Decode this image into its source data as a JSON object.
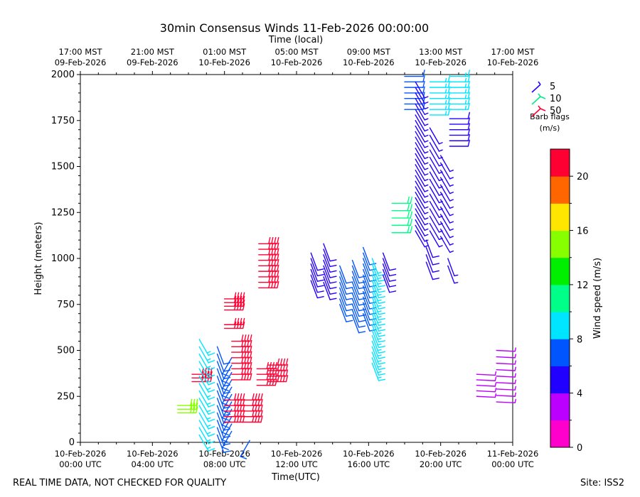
{
  "chart_data": {
    "type": "wind-barb-time-height",
    "title": "30min Consensus Winds 11-Feb-2026 00:00:00",
    "top_axis_label": "Time (local)",
    "xlabel": "Time(UTC)",
    "ylabel": "Height (meters)",
    "x_range_hours": [
      0,
      24
    ],
    "ylim": [
      0,
      2000
    ],
    "y_ticks": [
      0,
      250,
      500,
      750,
      1000,
      1250,
      1500,
      1750,
      2000
    ],
    "x_ticks": [
      {
        "h": 0,
        "l1": "10-Feb-2026",
        "l2": "00:00 UTC"
      },
      {
        "h": 4,
        "l1": "10-Feb-2026",
        "l2": "04:00 UTC"
      },
      {
        "h": 8,
        "l1": "10-Feb-2026",
        "l2": "08:00 UTC"
      },
      {
        "h": 12,
        "l1": "10-Feb-2026",
        "l2": "12:00 UTC"
      },
      {
        "h": 16,
        "l1": "10-Feb-2026",
        "l2": "16:00 UTC"
      },
      {
        "h": 20,
        "l1": "10-Feb-2026",
        "l2": "20:00 UTC"
      },
      {
        "h": 24,
        "l1": "11-Feb-2026",
        "l2": "00:00 UTC"
      }
    ],
    "top_ticks": [
      {
        "h": 0,
        "l1": "17:00 MST",
        "l2": "09-Feb-2026"
      },
      {
        "h": 4,
        "l1": "21:00 MST",
        "l2": "09-Feb-2026"
      },
      {
        "h": 8,
        "l1": "01:00 MST",
        "l2": "10-Feb-2026"
      },
      {
        "h": 12,
        "l1": "05:00 MST",
        "l2": "10-Feb-2026"
      },
      {
        "h": 16,
        "l1": "09:00 MST",
        "l2": "10-Feb-2026"
      },
      {
        "h": 20,
        "l1": "13:00 MST",
        "l2": "10-Feb-2026"
      },
      {
        "h": 24,
        "l1": "17:00 MST",
        "l2": "10-Feb-2026"
      }
    ],
    "colorbar": {
      "label": "Wind speed (m/s)",
      "min": 0,
      "max": 22,
      "ticks": [
        0,
        4,
        8,
        12,
        16,
        20
      ],
      "colors": [
        "#ff00cc",
        "#bb00ff",
        "#2200ff",
        "#0055ff",
        "#00e5ff",
        "#00ff88",
        "#00ee00",
        "#88ff00",
        "#ffe600",
        "#ff6600",
        "#ff0033"
      ]
    },
    "legend": {
      "title": "Barb flags",
      "units": "(m/s)",
      "entries": [
        {
          "label": "5",
          "color": "#2200ff"
        },
        {
          "label": "10",
          "color": "#00ee88"
        },
        {
          "label": "50",
          "color": "#ff0033"
        }
      ]
    },
    "barb_columns": [
      {
        "t": 6.2,
        "h0": 370,
        "h1": 330,
        "dh": 20,
        "s": 20,
        "dir": "E"
      },
      {
        "t": 5.4,
        "h0": 200,
        "h1": 160,
        "dh": 20,
        "s": 15,
        "dir": "E"
      },
      {
        "t": 6.6,
        "h0": 560,
        "h1": 20,
        "dh": 40,
        "s": 8,
        "dir": "NE"
      },
      {
        "t": 7.6,
        "h0": 520,
        "h1": 40,
        "dh": 40,
        "s": 7,
        "dir": "N"
      },
      {
        "t": 8.4,
        "h0": 460,
        "h1": 60,
        "dh": 40,
        "s": 6,
        "dir": "NW"
      },
      {
        "t": 9.4,
        "h0": 10,
        "h1": 10,
        "dh": 20,
        "s": 6,
        "dir": "NW"
      },
      {
        "t": 8.0,
        "h0": 780,
        "h1": 720,
        "dh": 20,
        "s": 20,
        "dir": "E"
      },
      {
        "t": 8.0,
        "h0": 640,
        "h1": 620,
        "dh": 20,
        "s": 20,
        "dir": "E"
      },
      {
        "t": 8.4,
        "h0": 550,
        "h1": 330,
        "dh": 30,
        "s": 20,
        "dir": "E"
      },
      {
        "t": 8.0,
        "h0": 230,
        "h1": 110,
        "dh": 30,
        "s": 20,
        "dir": "E"
      },
      {
        "t": 9.0,
        "h0": 230,
        "h1": 100,
        "dh": 30,
        "s": 20,
        "dir": "E"
      },
      {
        "t": 9.9,
        "h0": 1080,
        "h1": 840,
        "dh": 30,
        "s": 21,
        "dir": "E"
      },
      {
        "t": 9.8,
        "h0": 400,
        "h1": 300,
        "dh": 30,
        "s": 21,
        "dir": "E"
      },
      {
        "t": 10.4,
        "h0": 420,
        "h1": 310,
        "dh": 30,
        "s": 21,
        "dir": "E"
      },
      {
        "t": 12.8,
        "h0": 1030,
        "h1": 870,
        "dh": 30,
        "s": 5,
        "dir": "N"
      },
      {
        "t": 13.5,
        "h0": 1080,
        "h1": 860,
        "dh": 30,
        "s": 5,
        "dir": "N"
      },
      {
        "t": 14.4,
        "h0": 960,
        "h1": 730,
        "dh": 30,
        "s": 6,
        "dir": "N"
      },
      {
        "t": 15.1,
        "h0": 990,
        "h1": 690,
        "dh": 30,
        "s": 7,
        "dir": "N"
      },
      {
        "t": 15.7,
        "h0": 1060,
        "h1": 690,
        "dh": 30,
        "s": 7,
        "dir": "N"
      },
      {
        "t": 16.2,
        "h0": 1000,
        "h1": 430,
        "dh": 30,
        "s": 8,
        "dir": "N"
      },
      {
        "t": 16.8,
        "h0": 1030,
        "h1": 900,
        "dh": 30,
        "s": 5,
        "dir": "N"
      },
      {
        "t": 17.3,
        "h0": 1300,
        "h1": 1130,
        "dh": 40,
        "s": 11,
        "dir": "E"
      },
      {
        "t": 18.0,
        "h0": 1990,
        "h1": 1810,
        "dh": 30,
        "s": 7,
        "dir": "E"
      },
      {
        "t": 18.6,
        "h0": 1960,
        "h1": 1130,
        "dh": 30,
        "s": 4,
        "dir": "NE"
      },
      {
        "t": 19.4,
        "h0": 1960,
        "h1": 1780,
        "dh": 30,
        "s": 8,
        "dir": "E"
      },
      {
        "t": 19.4,
        "h0": 1710,
        "h1": 1130,
        "dh": 40,
        "s": 4,
        "dir": "NE"
      },
      {
        "t": 19.2,
        "h0": 1100,
        "h1": 970,
        "dh": 40,
        "s": 5,
        "dir": "N"
      },
      {
        "t": 20.5,
        "h0": 1990,
        "h1": 1810,
        "dh": 30,
        "s": 9,
        "dir": "E"
      },
      {
        "t": 20.5,
        "h0": 1760,
        "h1": 1610,
        "dh": 30,
        "s": 5,
        "dir": "E"
      },
      {
        "t": 20.0,
        "h0": 1560,
        "h1": 1100,
        "dh": 40,
        "s": 4,
        "dir": "NE"
      },
      {
        "t": 20.4,
        "h0": 1000,
        "h1": 960,
        "dh": 40,
        "s": 4,
        "dir": "N"
      },
      {
        "t": 22.0,
        "h0": 370,
        "h1": 230,
        "dh": 30,
        "s": 3,
        "dir": "W"
      },
      {
        "t": 23.1,
        "h0": 500,
        "h1": 200,
        "dh": 35,
        "s": 3,
        "dir": "W"
      }
    ],
    "footer_left": "REAL TIME DATA, NOT CHECKED FOR QUALITY",
    "footer_right": "Site: ISS2"
  }
}
